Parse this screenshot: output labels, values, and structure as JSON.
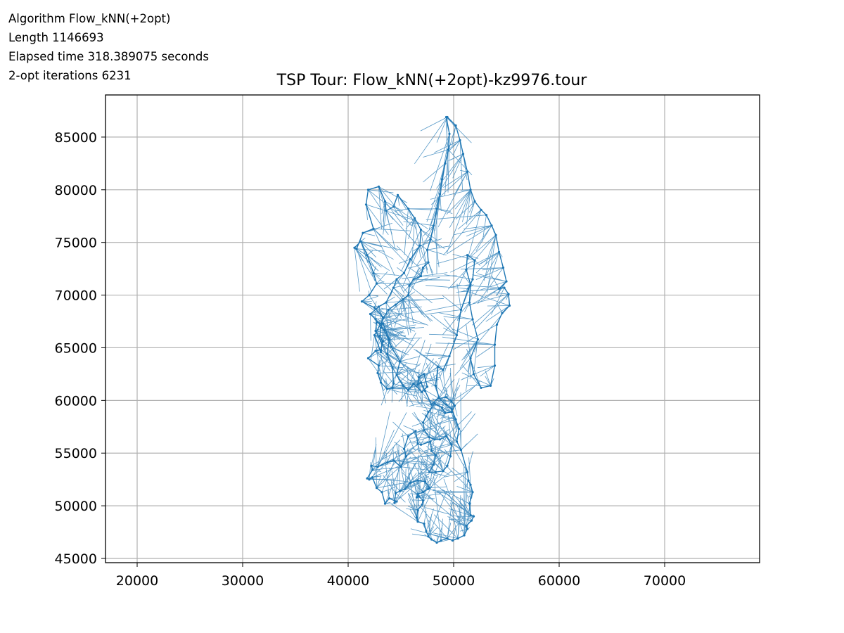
{
  "info": {
    "algorithm": "Algorithm Flow_kNN(+2opt)",
    "length": "Length 1146693",
    "elapsed": "Elapsed time 318.389075 seconds",
    "iterations": "2-opt iterations 6231"
  },
  "chart_data": {
    "type": "line",
    "title": "TSP Tour: Flow_kNN(+2opt)-kz9976.tour",
    "xlabel": "",
    "ylabel": "",
    "xlim": [
      17000,
      79000
    ],
    "ylim": [
      44600,
      89000
    ],
    "xticks": [
      20000,
      30000,
      40000,
      50000,
      60000,
      70000
    ],
    "yticks": [
      45000,
      50000,
      55000,
      60000,
      65000,
      70000,
      75000,
      80000,
      85000
    ],
    "grid": true,
    "series": [
      {
        "color": "#1f77b4",
        "marker": "point",
        "x": [
          49400,
          50200,
          50600,
          50900,
          51300,
          51600,
          52000,
          52600,
          53100,
          53600,
          54000,
          54300,
          54700,
          55000,
          54300,
          54800,
          55200,
          55300,
          54600,
          54100,
          53900,
          53900,
          53500,
          52600,
          51900,
          51600,
          52300,
          51800,
          51500,
          51600,
          51200,
          51300,
          52000,
          51800,
          51400,
          50700,
          50300,
          49600,
          49000,
          48500,
          48300,
          48600,
          47900,
          47300,
          46900,
          46600,
          46700,
          47200,
          47500,
          47000,
          46200,
          45700,
          45200,
          44600,
          44900,
          44100,
          43400,
          42600,
          42100,
          42900,
          43600,
          44300,
          44600,
          45300,
          45900,
          46800,
          46900,
          46300,
          45700,
          44700,
          44300,
          43600,
          43500,
          42900,
          41900,
          41700,
          42400,
          41400,
          40800,
          40600,
          41200,
          41800,
          42400,
          42700,
          42000,
          41300,
          42500,
          43300,
          43100,
          43000,
          43300,
          43100,
          42600,
          41900,
          42900,
          42800,
          43100,
          43700,
          44200,
          44300,
          44200,
          43700,
          43900,
          43300,
          42700,
          42600,
          43200,
          43100,
          42500,
          43800,
          44500,
          45200,
          45700,
          45800,
          46200,
          46900,
          47100,
          47600,
          47500,
          47800,
          48100,
          48400,
          48700,
          48900,
          49200,
          49500,
          49600,
          49300
        ],
        "y": [
          86900,
          86100,
          84700,
          83400,
          81700,
          80000,
          78900,
          78100,
          77600,
          76600,
          75700,
          74100,
          72600,
          71300,
          70600,
          70700,
          70100,
          69000,
          68300,
          67200,
          65300,
          63300,
          61400,
          61200,
          62500,
          64000,
          65800,
          67700,
          69300,
          71000,
          72400,
          73800,
          73300,
          71500,
          70600,
          68600,
          66200,
          64200,
          62900,
          63200,
          61400,
          60300,
          59600,
          60900,
          61700,
          61500,
          62200,
          62500,
          61300,
          60800,
          61600,
          61000,
          61400,
          62400,
          63700,
          65100,
          66700,
          67700,
          68200,
          68900,
          69300,
          70700,
          71500,
          72100,
          73400,
          74700,
          76200,
          77300,
          78200,
          79500,
          78400,
          78000,
          78900,
          80300,
          80000,
          78600,
          76300,
          75900,
          74400,
          74500,
          75100,
          73800,
          72100,
          71100,
          70000,
          69400,
          68800,
          67900,
          66900,
          66100,
          65600,
          64800,
          64700,
          64000,
          63300,
          62600,
          61700,
          61100,
          61200,
          61600,
          63100,
          64400,
          65800,
          67300,
          67400,
          66600,
          65400,
          64600,
          66200,
          68600,
          69100,
          69600,
          70000,
          70900,
          71500,
          71800,
          72600,
          73100,
          74300,
          75300,
          76600,
          78200,
          79600,
          81000,
          82500,
          83800,
          85300,
          86900
        ]
      },
      {
        "color": "#1f77b4",
        "marker": "point",
        "x": [
          48600,
          49300,
          49800,
          50200,
          50500,
          50300,
          50700,
          51300,
          51400,
          51600,
          51800,
          51500,
          51600,
          51900,
          51700,
          51200,
          51300,
          51000,
          50400,
          49900,
          49400,
          48800,
          48400,
          47900,
          47600,
          47400,
          47200,
          46600,
          46500,
          46600,
          47000,
          47100,
          46700,
          46500,
          46600,
          47100,
          47600,
          47700,
          47300,
          46600,
          45900,
          45400,
          44900,
          44500,
          44400,
          44600,
          43900,
          43500,
          43200,
          42700,
          42300,
          42000,
          41800,
          42300,
          42200,
          42800,
          43700,
          44300,
          45000,
          45500,
          45300,
          45700,
          46400,
          46600,
          46900,
          47800,
          47900,
          48300,
          48100,
          47700,
          48300,
          49000,
          49400,
          49700,
          49800,
          49300,
          48700,
          48200,
          47700,
          47200,
          47100,
          47400,
          47600,
          48200,
          48900,
          49200,
          49800,
          50100,
          49800,
          49300,
          48600
        ],
        "y": [
          60200,
          59600,
          59200,
          58200,
          57300,
          56100,
          55300,
          53200,
          52400,
          52000,
          51300,
          50200,
          49100,
          49000,
          48600,
          48100,
          47800,
          47200,
          46900,
          46700,
          46900,
          46700,
          46500,
          46800,
          47100,
          47600,
          48300,
          48500,
          48900,
          49600,
          50100,
          50500,
          50900,
          50800,
          51100,
          51300,
          51600,
          51700,
          52300,
          52400,
          52200,
          51600,
          51400,
          51200,
          50300,
          50400,
          50700,
          50200,
          51300,
          51700,
          52700,
          52500,
          52600,
          53400,
          53800,
          53700,
          54100,
          54300,
          53700,
          54700,
          55400,
          56600,
          57100,
          55900,
          55800,
          56100,
          55200,
          54800,
          53900,
          53200,
          53200,
          53300,
          53800,
          54700,
          55800,
          56600,
          56300,
          56300,
          56500,
          57200,
          57900,
          58500,
          58900,
          59700,
          59300,
          58800,
          58900,
          59500,
          59900,
          60300,
          60200
        ]
      }
    ]
  }
}
